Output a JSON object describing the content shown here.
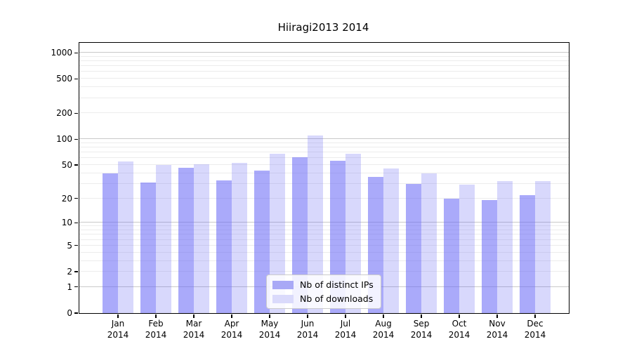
{
  "figure": {
    "background": "#ffffff"
  },
  "chart_data": {
    "type": "bar",
    "title": "Hiiragi2013 2014",
    "categories": [
      "Jan",
      "Feb",
      "Mar",
      "Apr",
      "May",
      "Jun",
      "Jul",
      "Aug",
      "Sep",
      "Oct",
      "Nov",
      "Dec"
    ],
    "x_year_label": "2014",
    "series": [
      {
        "name": "Nb of distinct IPs",
        "color": "rgba(100,100,245,0.55)",
        "legend_color": "#a9a9f6",
        "values": [
          40,
          31,
          46,
          33,
          43,
          62,
          56,
          36,
          30,
          20,
          19,
          22
        ]
      },
      {
        "name": "Nb of downloads",
        "color": "rgba(100,100,245,0.25)",
        "legend_color": "#dadafb",
        "values": [
          55,
          50,
          51,
          53,
          67,
          110,
          68,
          45,
          40,
          29,
          32,
          32
        ]
      }
    ],
    "y_axis": {
      "scale": "log1p",
      "max": 1300,
      "ticks": [
        0,
        1,
        2,
        5,
        10,
        20,
        50,
        100,
        200,
        500,
        1000
      ],
      "major_gridlines": [
        1,
        10,
        100,
        1000
      ],
      "minor_gridlines": [
        2,
        3,
        4,
        5,
        6,
        7,
        8,
        9,
        20,
        30,
        40,
        50,
        60,
        70,
        80,
        90,
        200,
        300,
        400,
        500,
        600,
        700,
        800,
        900
      ]
    },
    "grid": "on",
    "legend_position": "lower center"
  },
  "colors": {
    "axis": "#000000",
    "grid_major": "#c9c9c9",
    "grid_minor": "#ececec",
    "legend_border": "#cccccc",
    "legend_background": "rgba(255,255,255,0.85)",
    "text": "#000000"
  }
}
